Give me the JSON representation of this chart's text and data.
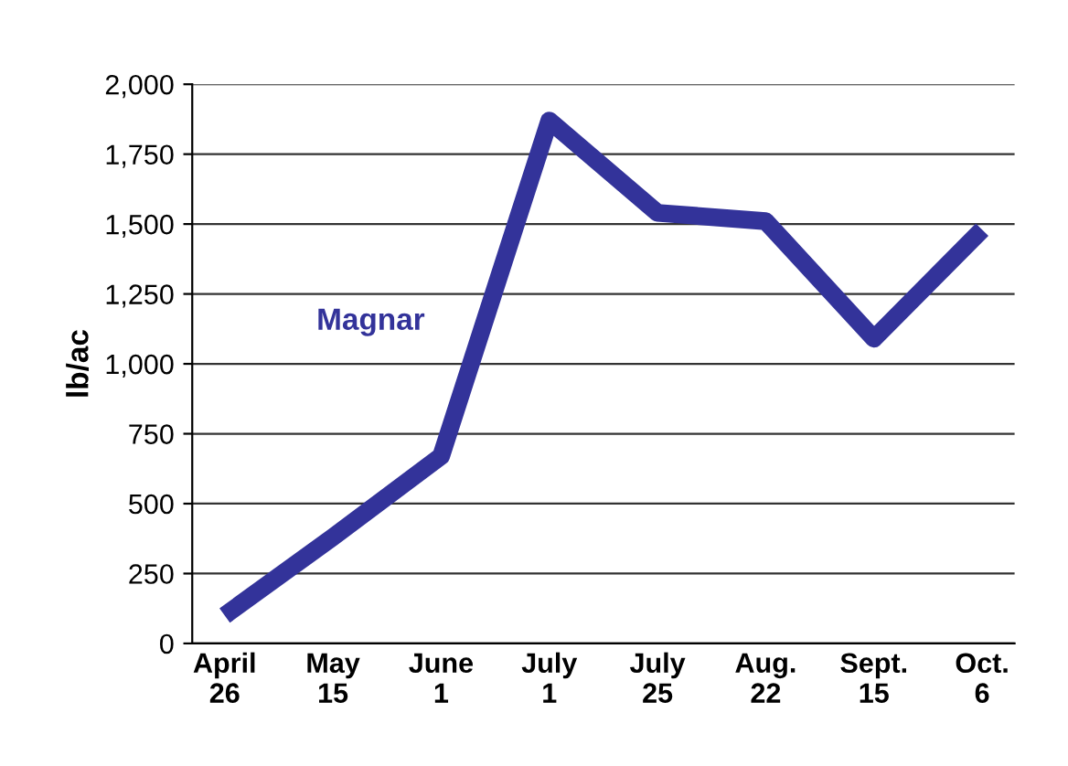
{
  "chart_data": {
    "type": "line",
    "ylabel": "lb/ac",
    "categories": [
      "April\n26",
      "May\n15",
      "June\n1",
      "July\n1",
      "July\n25",
      "Aug.\n22",
      "Sept.\n15",
      "Oct.\n6"
    ],
    "series": [
      {
        "name": "Magnar",
        "color": "#33339a",
        "values": [
          100,
          380,
          670,
          1870,
          1540,
          1510,
          1090,
          1480
        ]
      }
    ],
    "ylim": [
      0,
      2000
    ],
    "yticks": [
      0,
      {
        "value": 250,
        "label": "250"
      },
      {
        "value": 500,
        "label": "500"
      },
      {
        "value": 750,
        "label": "750"
      },
      {
        "value": 1000,
        "label": "1,000"
      },
      {
        "value": 1250,
        "label": "1,250"
      },
      {
        "value": 1500,
        "label": "1,500"
      },
      {
        "value": 1750,
        "label": "1,750"
      },
      {
        "value": 2000,
        "label": "2,000"
      }
    ],
    "grid": "y",
    "line_style": "solid",
    "marker": "none"
  }
}
